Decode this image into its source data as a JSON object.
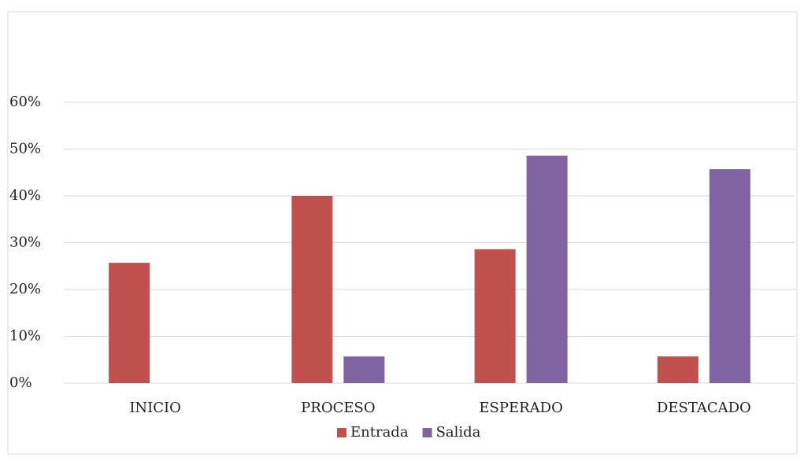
{
  "chart_data": {
    "type": "bar",
    "categories": [
      "INICIO",
      "PROCESO",
      "ESPERADO",
      "DESTACADO"
    ],
    "series": [
      {
        "name": "Entrada",
        "color": "#c0504d",
        "values": [
          25.7,
          40,
          28.6,
          5.7
        ]
      },
      {
        "name": "Salida",
        "color": "#8064a2",
        "values": [
          0,
          5.7,
          48.6,
          45.7
        ]
      }
    ],
    "ylim": [
      0,
      60
    ],
    "yticks": [
      {
        "value": 0,
        "label": "0%"
      },
      {
        "value": 10,
        "label": "10%"
      },
      {
        "value": 20,
        "label": "20%"
      },
      {
        "value": 30,
        "label": "30%"
      },
      {
        "value": 40,
        "label": "40%"
      },
      {
        "value": 50,
        "label": "50%"
      },
      {
        "value": 60,
        "label": "60%"
      }
    ],
    "grid": true,
    "legend": "bottom"
  }
}
